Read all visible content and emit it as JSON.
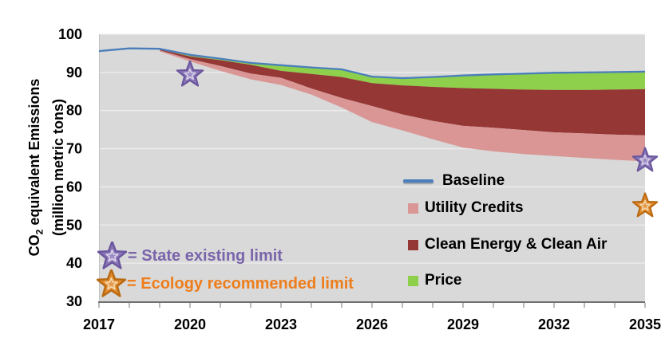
{
  "chart_data": {
    "type": "area",
    "title": "",
    "x_axis": {
      "min": 2017,
      "max": 2035,
      "labeled_ticks": [
        2017,
        2020,
        2023,
        2026,
        2029,
        2032,
        2035
      ],
      "minor_tick_step": 1
    },
    "y_axis": {
      "min": 30,
      "max": 100,
      "ticks": [
        100,
        90,
        80,
        70,
        60,
        50,
        40,
        30
      ],
      "title_prefix": "CO",
      "title_sub": "2",
      "title_rest": " equivalent Emissions",
      "title_line2": "(million metric tons)"
    },
    "years": [
      2017,
      2018,
      2019,
      2020,
      2021,
      2022,
      2023,
      2024,
      2025,
      2026,
      2027,
      2028,
      2029,
      2030,
      2031,
      2032,
      2033,
      2034,
      2035
    ],
    "series": {
      "baseline": [
        95.6,
        96.3,
        96.2,
        94.6,
        93.6,
        92.5,
        91.9,
        91.3,
        90.8,
        88.9,
        88.5,
        88.8,
        89.2,
        89.5,
        89.7,
        89.9,
        90.0,
        90.1,
        90.2
      ],
      "price_lower": [
        null,
        null,
        96.0,
        94.2,
        93.2,
        92.0,
        90.4,
        89.6,
        88.8,
        87.2,
        86.6,
        86.2,
        85.9,
        85.7,
        85.5,
        85.4,
        85.4,
        85.5,
        85.6
      ],
      "clean_energy_lower": [
        null,
        null,
        95.8,
        93.5,
        91.7,
        89.7,
        88.6,
        85.8,
        83.3,
        81.2,
        79.0,
        77.3,
        76.0,
        75.5,
        74.9,
        74.3,
        74.0,
        73.7,
        73.5
      ],
      "utility_credits_lower": [
        null,
        null,
        95.5,
        92.9,
        90.4,
        88.2,
        86.7,
        84.2,
        80.8,
        77.0,
        74.8,
        72.5,
        70.3,
        69.3,
        68.6,
        68.1,
        67.6,
        67.1,
        66.7
      ]
    },
    "legend": {
      "items": [
        {
          "label": "Baseline",
          "swatch": "line",
          "color": "#4a7ebb"
        },
        {
          "label": "Utility Credits",
          "swatch": "square",
          "color": "#d99694"
        },
        {
          "label": "Clean Energy & Clean Air",
          "swatch": "square",
          "color": "#943735"
        },
        {
          "label": "Price",
          "swatch": "square",
          "color": "#8ed04c"
        }
      ]
    },
    "markers": [
      {
        "shape": "star",
        "color": "purple",
        "year": 2020,
        "value": 89.4,
        "radius": 17
      },
      {
        "shape": "star",
        "color": "purple",
        "year": 2035,
        "value": 66.9,
        "radius": 16
      },
      {
        "shape": "star",
        "color": "orange",
        "year": 2035,
        "value": 55.0,
        "radius": 16
      }
    ],
    "annotations": [
      {
        "symbol": "star",
        "color_key": "purple",
        "text": "= State existing limit",
        "color": "#7a64ab"
      },
      {
        "symbol": "star",
        "color_key": "orange",
        "text": "= Ecology recommended limit",
        "color": "#ee7d1b"
      }
    ],
    "colors": {
      "plot_bg": "#d9d9d9",
      "gridline": "#eeeeee",
      "plot_left_border": "#c2c2c2",
      "baseline": "#4a7ebb",
      "utility_credits": "#d99694",
      "clean_energy_clean_air": "#943735",
      "price": "#8ed04c",
      "axis_line": "#6f6f6f",
      "tick": "#9c9c9c",
      "label": "#000000",
      "purple_star": {
        "fill": "#8a78b5",
        "stroke": "#6b569f",
        "inner_fill": "#9d8cc2",
        "inner_stroke": "#d8d0ea"
      },
      "orange_star": {
        "fill": "#e08b31",
        "stroke": "#b96a10",
        "inner_fill": "#e49a4e",
        "inner_stroke": "#f5d8ab"
      }
    }
  }
}
